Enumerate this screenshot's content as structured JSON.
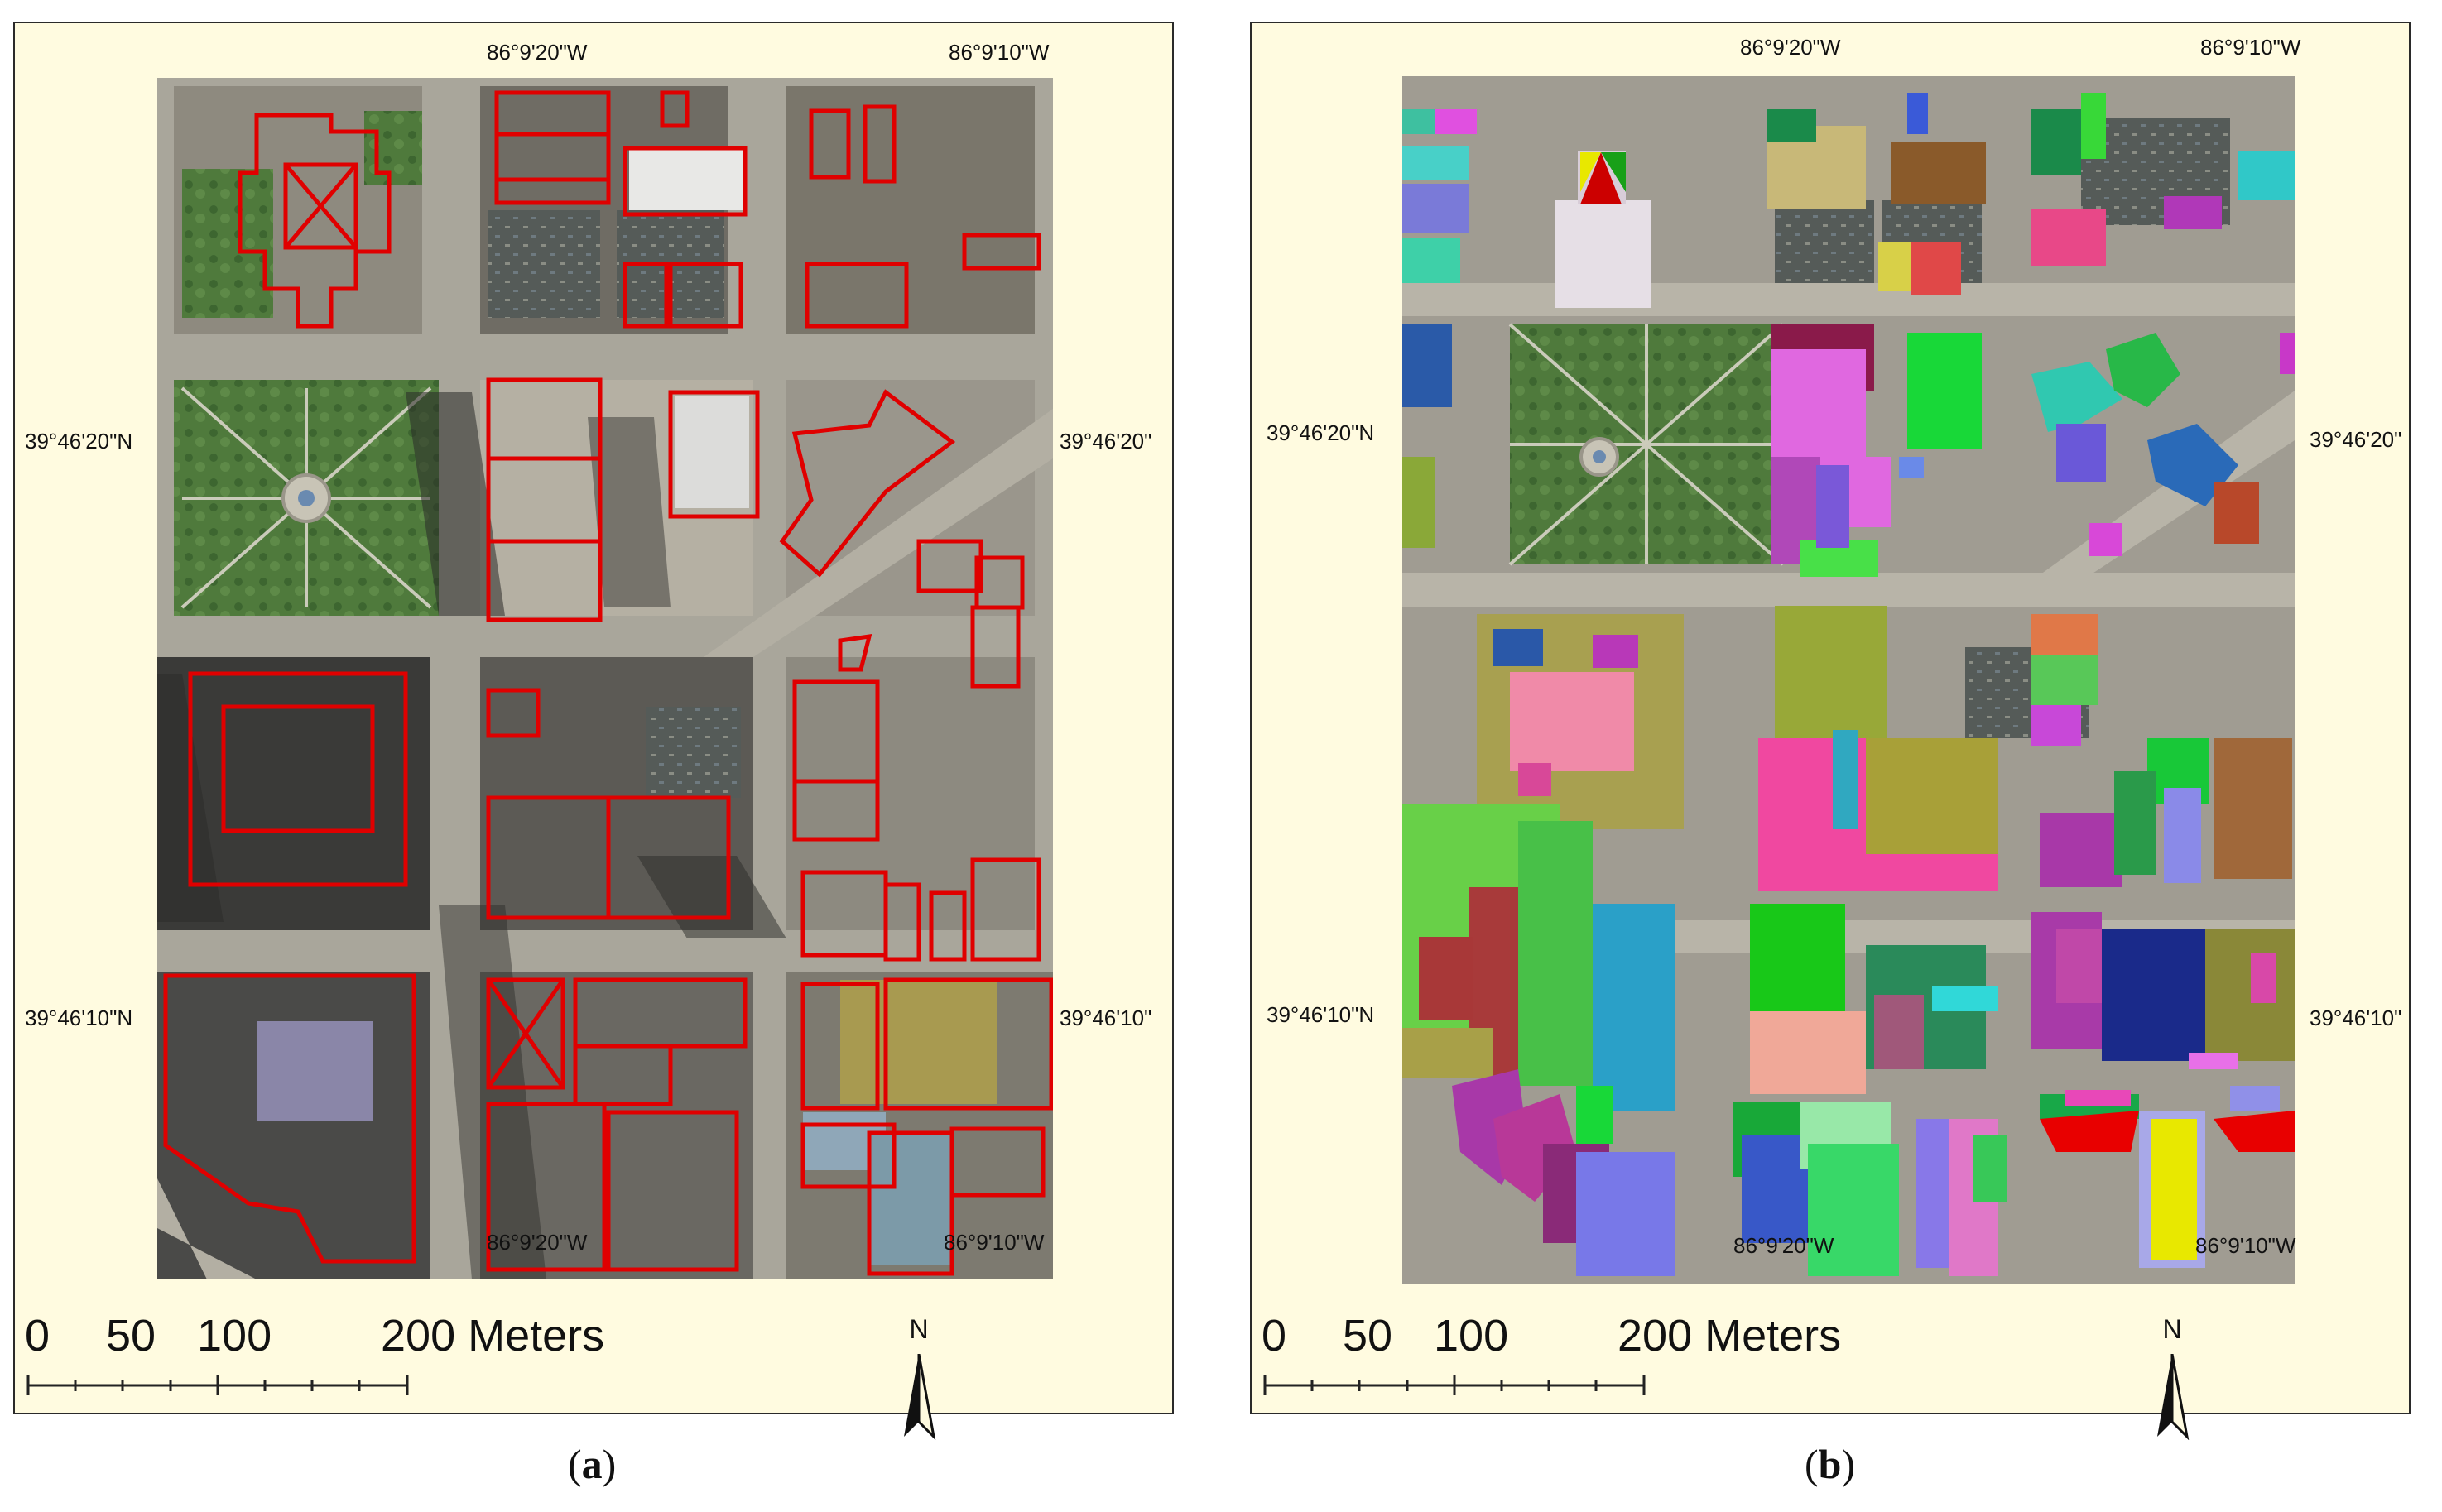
{
  "panels": [
    {
      "id": "a",
      "caption_letter": "a",
      "coords": {
        "top_left": "86°9'20\"W",
        "top_right": "86°9'10\"W",
        "bottom_left": "86°9'20\"W",
        "bottom_right": "86°9'10\"W",
        "left_upper": "39°46'20\"N",
        "left_lower": "39°46'10\"N",
        "right_upper": "39°46'20\"",
        "right_lower": "39°46'10\""
      },
      "scale_labels": [
        "0",
        "50",
        "100",
        "200 Meters"
      ],
      "north_label": "N",
      "outline_color": "#e00000"
    },
    {
      "id": "b",
      "caption_letter": "b",
      "coords": {
        "top_left": "86°9'20\"W",
        "top_right": "86°9'10\"W",
        "bottom_left": "86°9'20\"W",
        "bottom_right": "86°9'10\"W",
        "left_upper": "39°46'20\"N",
        "left_lower": "39°46'10\"N",
        "right_upper": "39°46'20\"",
        "right_lower": "39°46'10\""
      },
      "scale_labels": [
        "0",
        "50",
        "100",
        "200 Meters"
      ],
      "north_label": "N"
    }
  ]
}
